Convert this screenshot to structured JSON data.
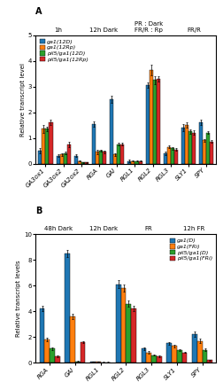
{
  "chart_data": [
    {
      "type": "bar",
      "title": "A",
      "categories": [
        "GA3ox1",
        "GA3ox2",
        "GA2ox2",
        "RGA",
        "GAI",
        "RGL1",
        "RGL2",
        "RGL3",
        "SLY1",
        "SPY"
      ],
      "series": [
        {
          "name": "ga1(12D)",
          "values": [
            0.5,
            0.3,
            0.3,
            1.55,
            2.5,
            0.1,
            3.05,
            0.4,
            1.4,
            1.6
          ],
          "errors": [
            0.1,
            0.05,
            0.05,
            0.1,
            0.15,
            0.04,
            0.1,
            0.08,
            0.15,
            0.1
          ]
        },
        {
          "name": "ga1(12Rp)",
          "values": [
            1.35,
            0.35,
            0.1,
            0.45,
            0.35,
            0.1,
            3.65,
            0.65,
            1.5,
            0.9
          ],
          "errors": [
            0.15,
            0.05,
            0.02,
            0.08,
            0.05,
            0.02,
            0.2,
            0.05,
            0.1,
            0.05
          ]
        },
        {
          "name": "pil5/ga1(12D)",
          "values": [
            1.35,
            0.4,
            0.05,
            0.5,
            0.75,
            0.1,
            3.25,
            0.6,
            1.25,
            1.2
          ],
          "errors": [
            0.1,
            0.05,
            0.02,
            0.05,
            0.05,
            0.02,
            0.15,
            0.05,
            0.08,
            0.05
          ]
        },
        {
          "name": "pil5/ga1(12Rp)",
          "values": [
            1.6,
            0.75,
            0.05,
            0.45,
            0.75,
            0.1,
            3.3,
            0.55,
            1.2,
            0.85
          ],
          "errors": [
            0.1,
            0.1,
            0.02,
            0.05,
            0.05,
            0.02,
            0.1,
            0.05,
            0.08,
            0.05
          ]
        }
      ],
      "ylabel": "Relative transcript level",
      "ylim": [
        0,
        5
      ],
      "yticks": [
        0,
        1,
        2,
        3,
        4,
        5
      ],
      "legend": "upper left",
      "annotations": [
        "1h",
        "12h Dark",
        "PR : Dark\nFR/R : Rp",
        "FR/R"
      ]
    },
    {
      "type": "bar",
      "title": "B",
      "categories": [
        "RGA",
        "GAI",
        "RGL1",
        "RGL2",
        "RGL3",
        "SLY1",
        "SPY"
      ],
      "series": [
        {
          "name": "ga1(D)",
          "values": [
            4.2,
            8.5,
            0.08,
            6.1,
            1.1,
            1.5,
            2.2
          ],
          "errors": [
            0.2,
            0.3,
            0.02,
            0.3,
            0.1,
            0.1,
            0.2
          ]
        },
        {
          "name": "ga1(FRi)",
          "values": [
            1.8,
            3.6,
            0.08,
            5.8,
            0.8,
            1.3,
            1.7
          ],
          "errors": [
            0.15,
            0.2,
            0.02,
            0.3,
            0.08,
            0.1,
            0.15
          ]
        },
        {
          "name": "pil5/ga1(D)",
          "values": [
            1.1,
            0.1,
            0.04,
            4.6,
            0.6,
            1.0,
            1.0
          ],
          "errors": [
            0.1,
            0.05,
            0.01,
            0.25,
            0.05,
            0.08,
            0.1
          ]
        },
        {
          "name": "pil5/ga1(FRi)",
          "values": [
            0.5,
            1.6,
            0.04,
            4.2,
            0.5,
            0.8,
            0.2
          ],
          "errors": [
            0.08,
            0.1,
            0.01,
            0.2,
            0.05,
            0.05,
            0.05
          ]
        }
      ],
      "ylabel": "Relative transcript levels",
      "ylim": [
        0,
        10
      ],
      "yticks": [
        0,
        2,
        4,
        6,
        8,
        10
      ],
      "legend": "upper right",
      "annotations": [
        "48h Dark",
        "12h Dark",
        "FR",
        "12h FR"
      ]
    }
  ]
}
